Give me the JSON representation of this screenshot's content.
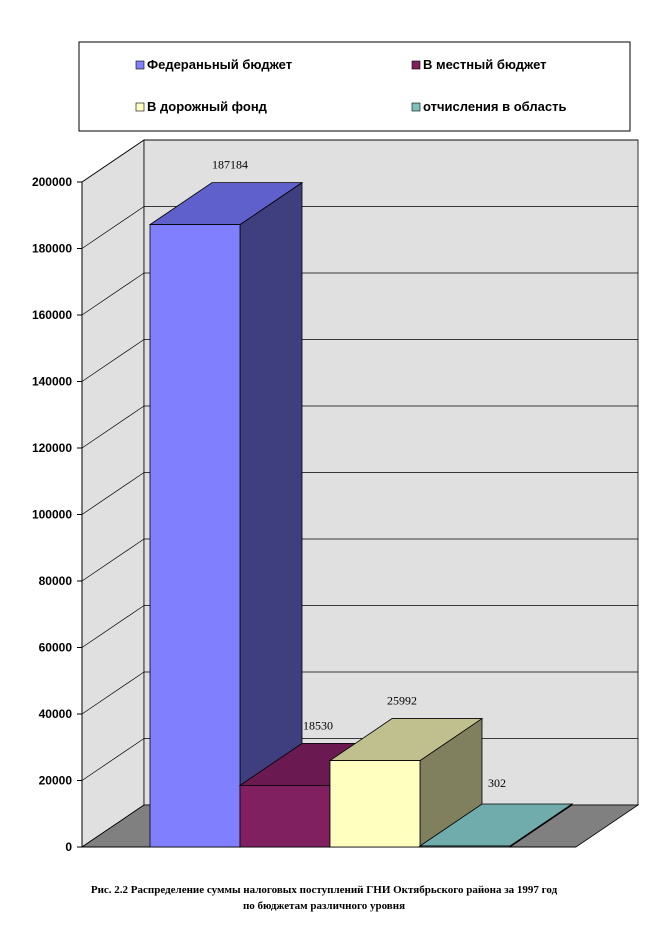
{
  "chart_data": {
    "type": "bar",
    "categories": [
      "Федераньный бюджет",
      "В местный бюджет",
      "В дорожный фонд",
      "отчисления в область"
    ],
    "values": [
      187184,
      18530,
      25992,
      302
    ],
    "data_labels": [
      "187184",
      "18530",
      "25992",
      "302"
    ],
    "yticks": [
      "0",
      "20000",
      "40000",
      "60000",
      "80000",
      "100000",
      "120000",
      "140000",
      "160000",
      "180000",
      "200000"
    ],
    "ylim": [
      0,
      200000
    ],
    "legend_position": "top",
    "grid": true,
    "three_d": true,
    "colors": {
      "front": [
        "#8080ff",
        "#802060",
        "#ffffc0",
        "#80c0c0"
      ],
      "side": [
        "#3f3f7f",
        "#5e1548",
        "#80805e",
        "#5e8a8a"
      ],
      "top": [
        "#6060cc",
        "#6a1a50",
        "#c0c08f",
        "#70acac"
      ],
      "wall": "#e0e0e0",
      "floor": "#808080"
    }
  },
  "caption": {
    "line1": "Рис. 2.2 Распределение суммы налоговых поступлений ГНИ Октябрьского района за 1997 год",
    "line2": "по бюджетам различного уровня"
  }
}
